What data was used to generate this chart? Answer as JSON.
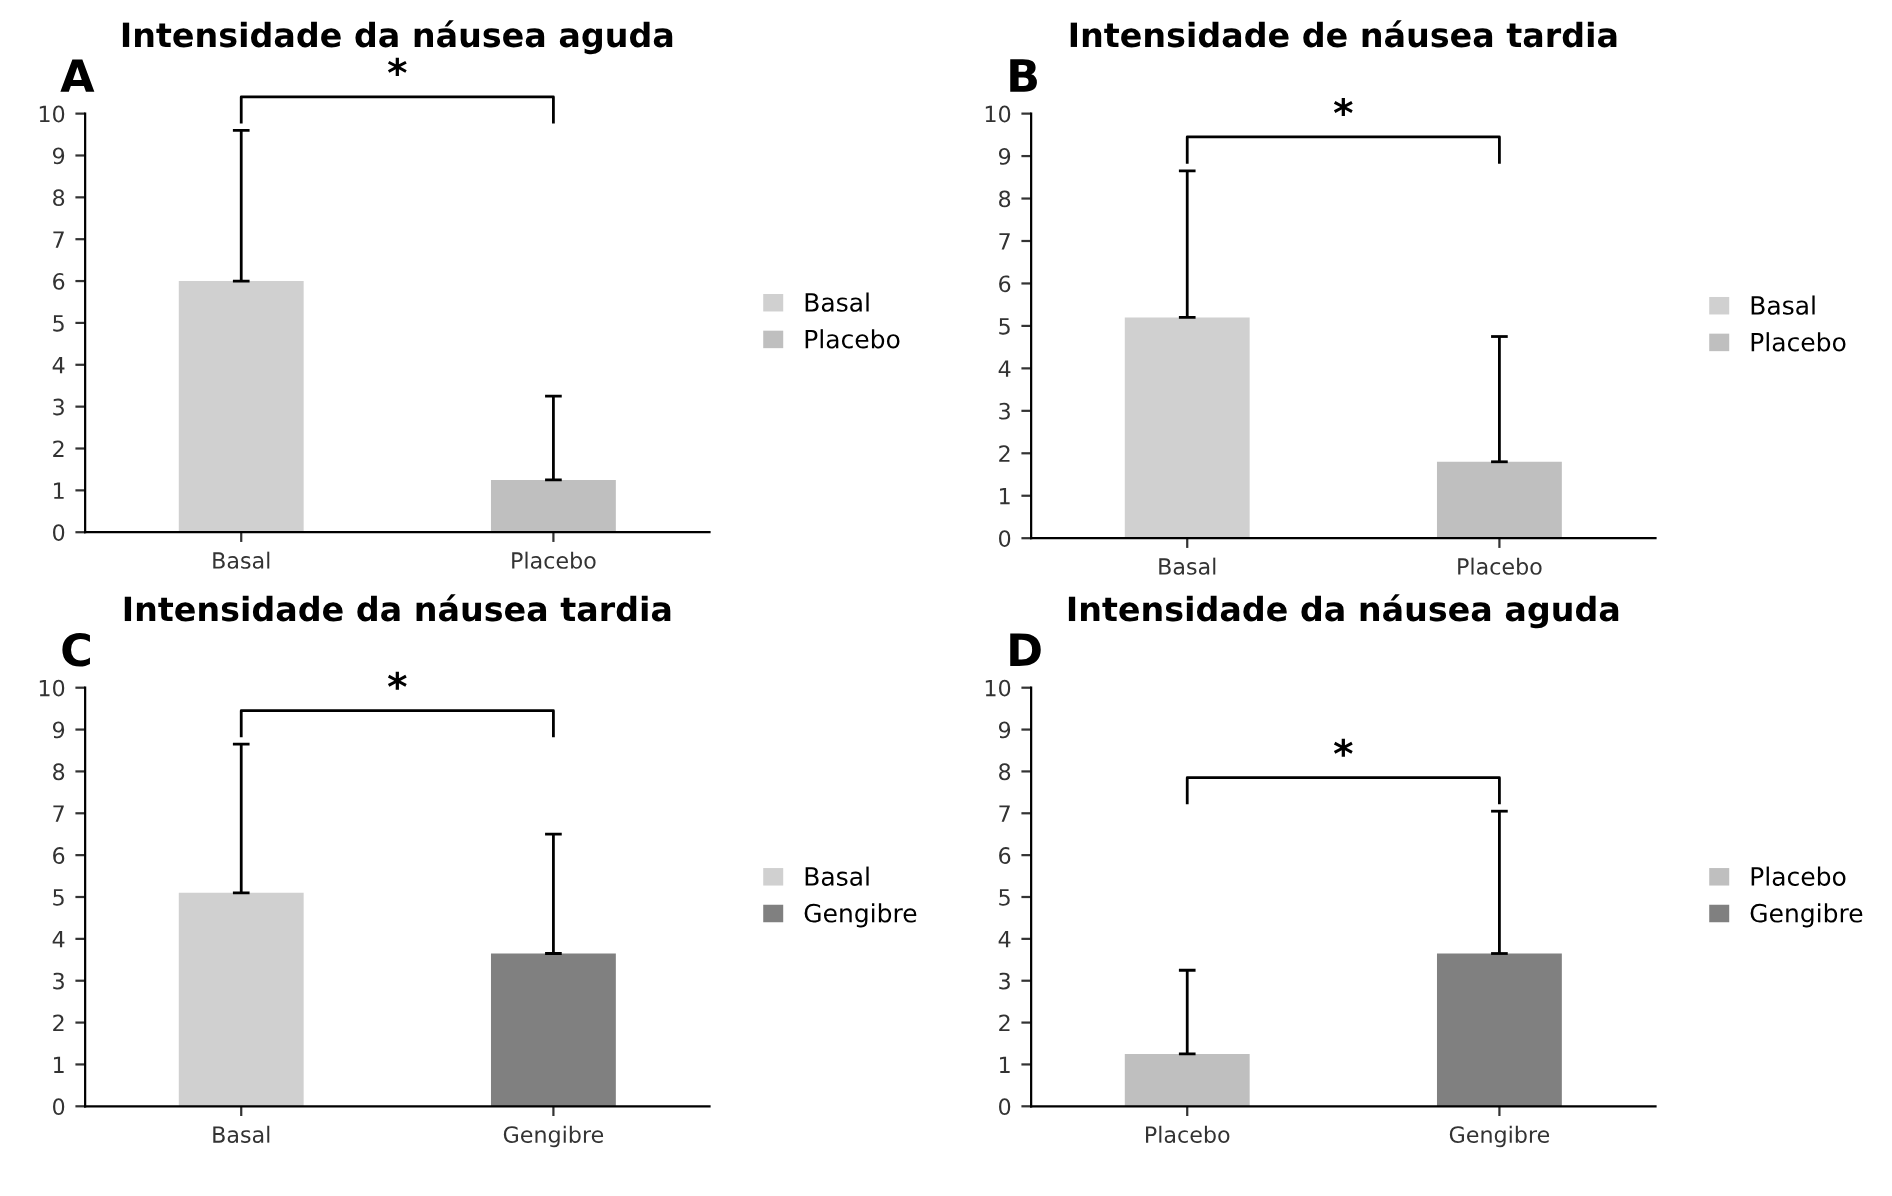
{
  "chart_data": [
    {
      "type": "bar",
      "title": "Intensidade da náusea aguda",
      "categories": [
        "Basal",
        "Placebo"
      ],
      "series": [
        {
          "name": "Basal",
          "color": "#d0d0d0",
          "values": [
            6.0,
            null
          ],
          "errors": [
            [
              6.0,
              9.6
            ],
            null
          ]
        },
        {
          "name": "Placebo",
          "color": "#bfbfbf",
          "values": [
            null,
            1.25
          ],
          "errors": [
            null,
            [
              1.25,
              3.25
            ]
          ]
        }
      ],
      "ylim": [
        0,
        10
      ],
      "yticks": [
        0,
        1,
        2,
        3,
        4,
        5,
        6,
        7,
        8,
        9,
        10
      ],
      "grid": false,
      "legend": "right",
      "annotations": [
        "A",
        "*"
      ]
    },
    {
      "type": "bar",
      "title": "Intensidade de náusea tardia",
      "categories": [
        "Basal",
        "Placebo"
      ],
      "series": [
        {
          "name": "Basal",
          "color": "#d0d0d0",
          "values": [
            5.2,
            null
          ],
          "errors": [
            [
              5.2,
              8.65
            ],
            null
          ]
        },
        {
          "name": "Placebo",
          "color": "#bfbfbf",
          "values": [
            null,
            1.8
          ],
          "errors": [
            null,
            [
              1.8,
              4.75
            ]
          ]
        }
      ],
      "ylim": [
        0,
        10
      ],
      "yticks": [
        0,
        1,
        2,
        3,
        4,
        5,
        6,
        7,
        8,
        9,
        10
      ],
      "grid": false,
      "legend": "right",
      "annotations": [
        "B",
        "*"
      ]
    },
    {
      "type": "bar",
      "title": "Intensidade da náusea tardia",
      "categories": [
        "Basal",
        "Gengibre"
      ],
      "series": [
        {
          "name": "Basal",
          "color": "#d0d0d0",
          "values": [
            5.1,
            null
          ],
          "errors": [
            [
              5.1,
              8.65
            ],
            null
          ]
        },
        {
          "name": "Gengibre",
          "color": "#808080",
          "values": [
            null,
            3.65
          ],
          "errors": [
            null,
            [
              3.65,
              6.5
            ]
          ]
        }
      ],
      "ylim": [
        0,
        10
      ],
      "yticks": [
        0,
        1,
        2,
        3,
        4,
        5,
        6,
        7,
        8,
        9,
        10
      ],
      "grid": false,
      "legend": "right",
      "annotations": [
        "C",
        "*"
      ]
    },
    {
      "type": "bar",
      "title": "Intensidade da náusea aguda",
      "categories": [
        "Placebo",
        "Gengibre"
      ],
      "series": [
        {
          "name": "Placebo",
          "color": "#bfbfbf",
          "values": [
            1.25,
            null
          ],
          "errors": [
            [
              1.25,
              3.25
            ],
            null
          ]
        },
        {
          "name": "Gengibre",
          "color": "#808080",
          "values": [
            null,
            3.65
          ],
          "errors": [
            null,
            [
              3.65,
              7.05
            ]
          ]
        }
      ],
      "ylim": [
        0,
        10
      ],
      "yticks": [
        0,
        1,
        2,
        3,
        4,
        5,
        6,
        7,
        8,
        9,
        10
      ],
      "grid": false,
      "legend": "right",
      "annotations": [
        "D",
        "*"
      ]
    }
  ]
}
